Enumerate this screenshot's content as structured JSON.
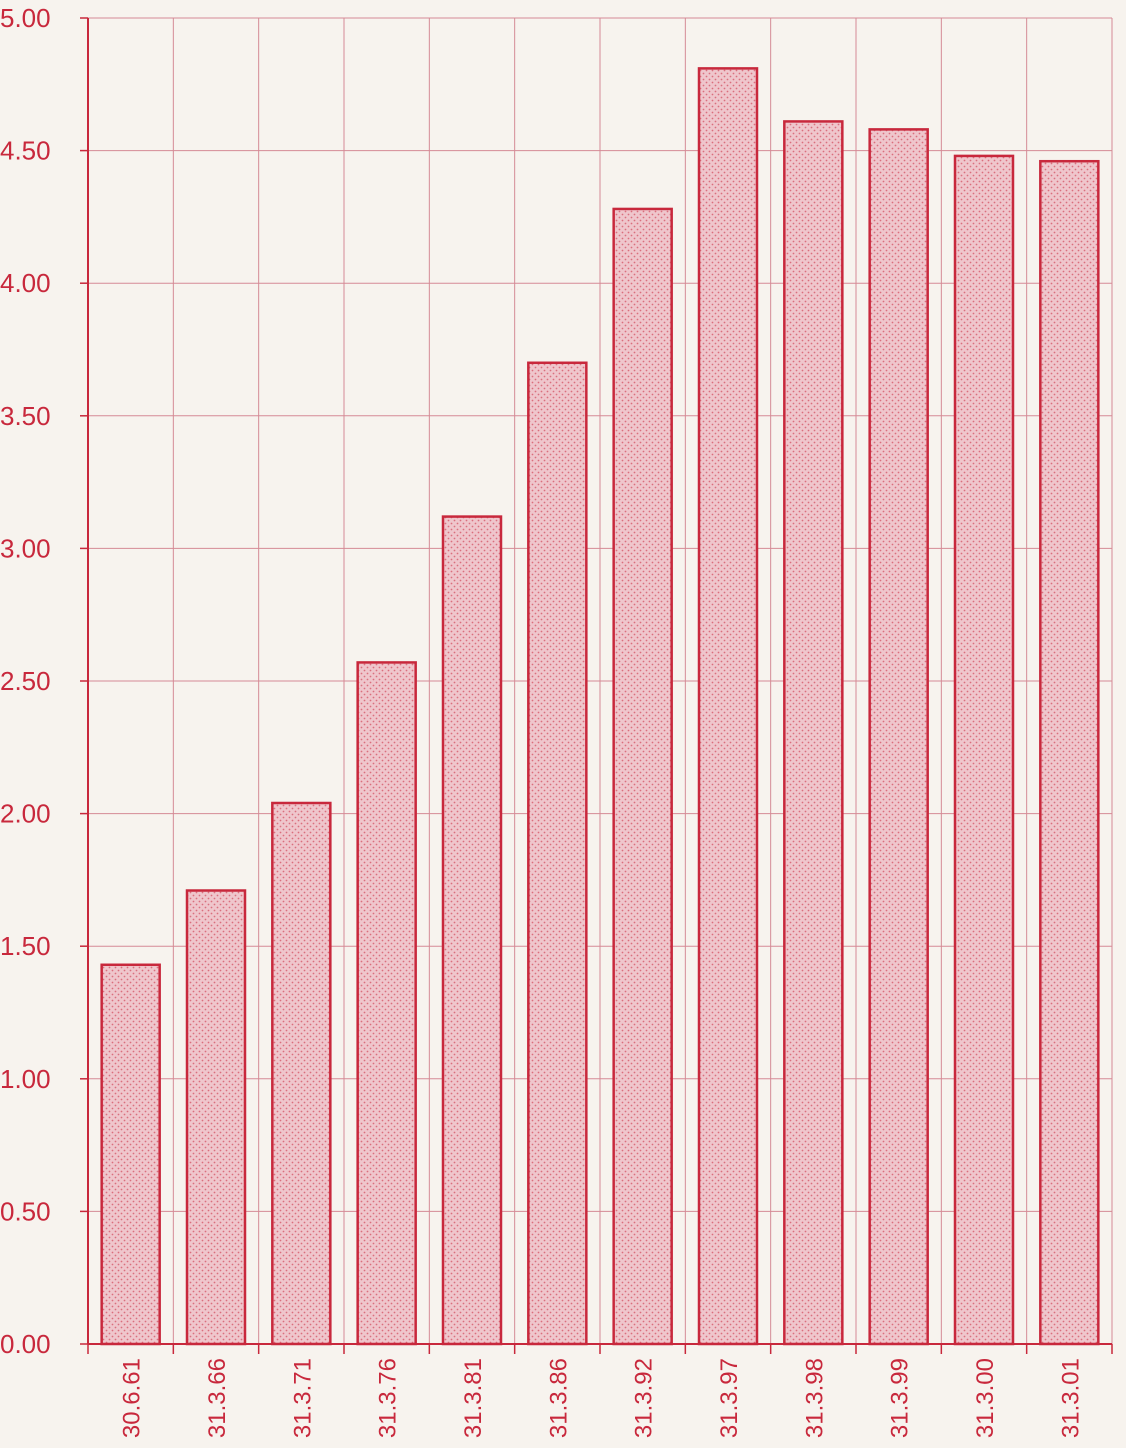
{
  "colors": {
    "ink": "#c8283c",
    "grid": "#d58a95",
    "bar_fill": "#efc6cc",
    "background": "#f7f3ee"
  },
  "chart_data": {
    "type": "bar",
    "title": "",
    "xlabel": "",
    "ylabel": "",
    "categories": [
      "30.6.61",
      "31.3.66",
      "31.3.71",
      "31.3.76",
      "31.3.81",
      "31.3.86",
      "31.3.92",
      "31.3.97",
      "31.3.98",
      "31.3.99",
      "31.3.00",
      "31.3.01"
    ],
    "values": [
      1.43,
      1.71,
      2.04,
      2.57,
      3.12,
      3.7,
      4.28,
      4.81,
      4.61,
      4.58,
      4.48,
      4.46
    ],
    "ylim": [
      0,
      5
    ],
    "yticks": [
      "0.00",
      "0.50",
      "1.00",
      "1.50",
      "2.00",
      "2.50",
      "3.00",
      "3.50",
      "4.00",
      "4.50",
      "5.00"
    ],
    "grid": true,
    "legend": "none",
    "bar_pattern": "dotted"
  }
}
